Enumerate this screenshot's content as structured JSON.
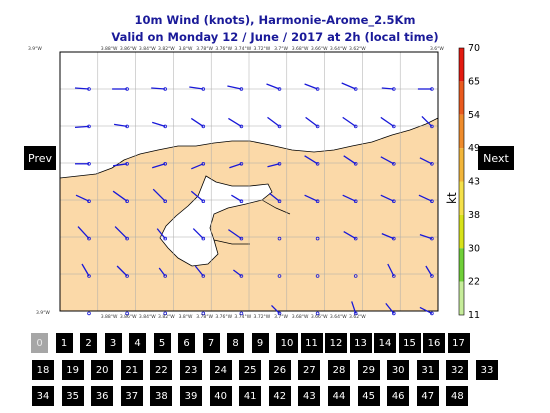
{
  "title_line1": "10m Wind (knots), Harmonie-Arome_2.5Km",
  "title_line2": "Valid on Monday 12 / June / 2017 at 2h (local time)",
  "prev_label": "Prev",
  "next_label": "Next",
  "colorbar": {
    "unit": "kt",
    "ticks": [
      "11",
      "22",
      "30",
      "38",
      "43",
      "49",
      "54",
      "65",
      "70"
    ],
    "colors": [
      "#e9f7d6",
      "#c6ec9a",
      "#6fcf38",
      "#d7e21a",
      "#f4e04a",
      "#f1b53a",
      "#ee8b2c",
      "#e95a1e",
      "#e21a10"
    ]
  },
  "map": {
    "lon_labels": [
      "3.9°W",
      "3.88°W",
      "3.86°W",
      "3.84°W",
      "3.82°W",
      "3.8°W",
      "3.78°W",
      "3.76°W",
      "3.74°W",
      "3.72°W",
      "3.7°W",
      "3.68°W",
      "3.66°W",
      "3.64°W",
      "3.62°W",
      "3.6°W"
    ],
    "corner_labels": {
      "top_left": "3.9°W",
      "top_right": "3.6°W",
      "bottom_left": "3.9°W"
    },
    "land_color": "#fbd9a8",
    "sea_color": "#ffffff",
    "arrow_color": "#1818d8"
  },
  "frames": {
    "active": "0",
    "row1": [
      "0",
      "1",
      "2",
      "3",
      "4",
      "5",
      "6",
      "7",
      "8",
      "9",
      "10",
      "11",
      "12",
      "13",
      "14",
      "15",
      "16",
      "17"
    ],
    "row2": [
      "18",
      "19",
      "20",
      "21",
      "22",
      "23",
      "24",
      "25",
      "26",
      "27",
      "28",
      "29",
      "30",
      "31",
      "32",
      "33"
    ],
    "row3": [
      "34",
      "35",
      "36",
      "37",
      "38",
      "39",
      "40",
      "41",
      "42",
      "43",
      "44",
      "45",
      "46",
      "47",
      "48"
    ]
  }
}
